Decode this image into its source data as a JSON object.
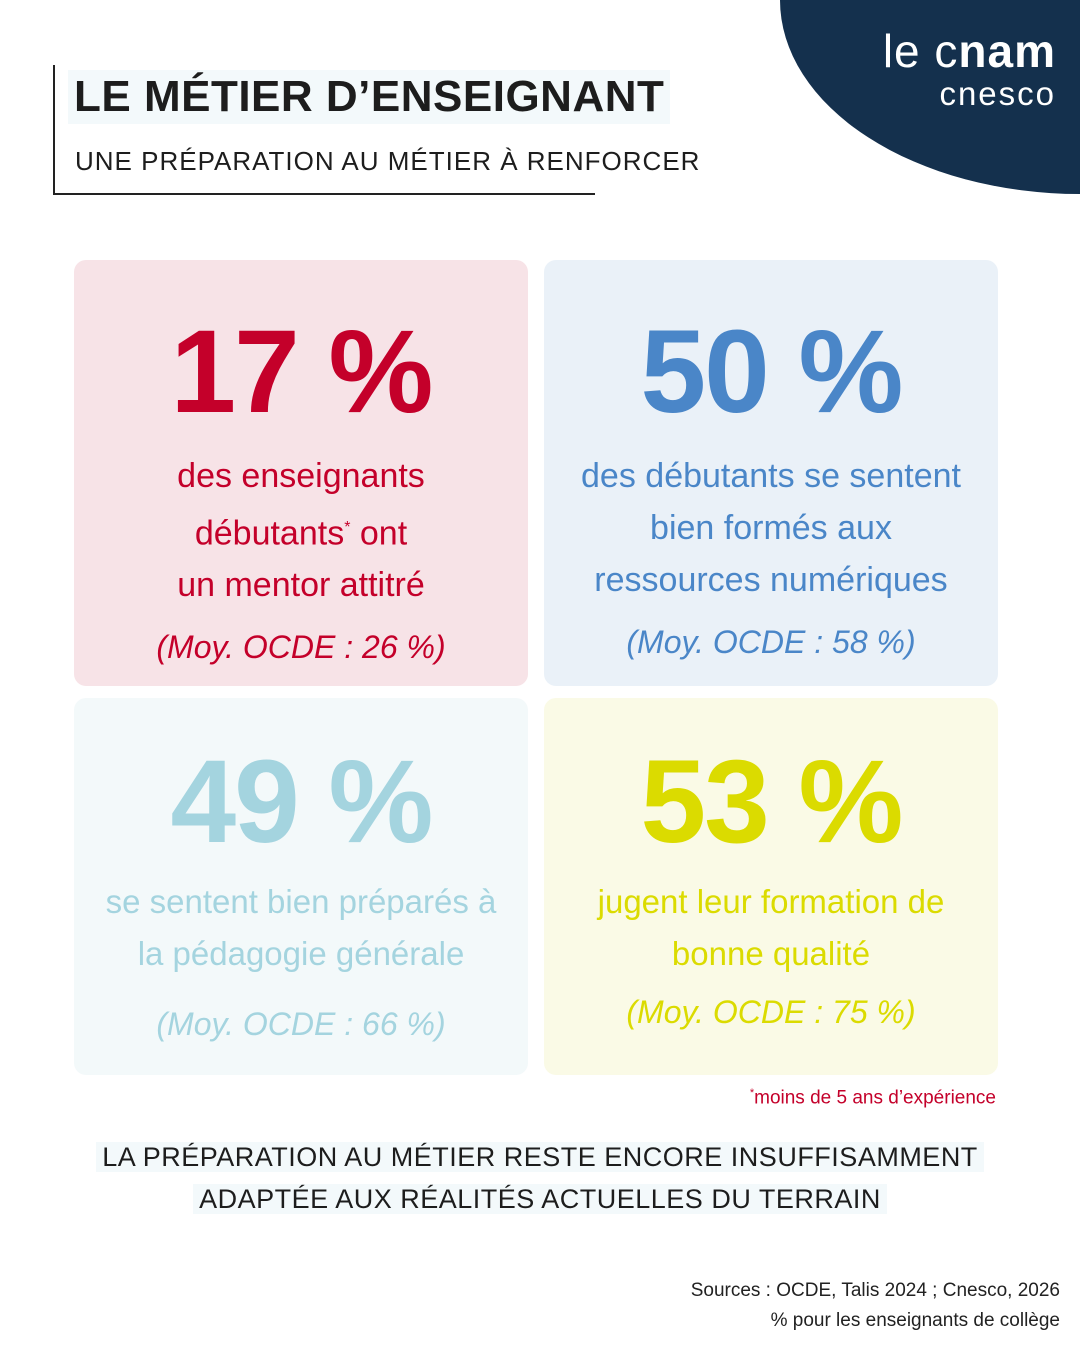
{
  "header": {
    "title": "LE MÉTIER D’ENSEIGNANT",
    "subtitle": "UNE PRÉPARATION AU MÉTIER À RENFORCER"
  },
  "logo": {
    "line1_light": "le c",
    "line1_bold": "nam",
    "line2": "cnesco"
  },
  "cards": [
    {
      "value": "17 %",
      "lines": [
        "des enseignants",
        "débutants",
        "ont",
        "un mentor attitré"
      ],
      "note_marker": "*",
      "avg": "(Moy. OCDE : 26 %)",
      "color": "#c4002a"
    },
    {
      "value": "50 %",
      "lines": [
        "des débutants se sentent",
        "bien formés aux",
        "ressources numériques"
      ],
      "avg": "(Moy. OCDE : 58 %)",
      "color": "#4a86c8"
    },
    {
      "value": "49 %",
      "lines": [
        "se sentent bien préparés à",
        "la pédagogie générale"
      ],
      "avg": "(Moy. OCDE : 66 %)",
      "color": "#a4d4df"
    },
    {
      "value": "53 %",
      "lines": [
        "jugent leur formation de",
        "bonne qualité"
      ],
      "avg": "(Moy. OCDE : 75 %)",
      "color": "#dbdb00"
    }
  ],
  "footnote": {
    "marker": "*",
    "text": "moins de 5 ans d’expérience"
  },
  "conclusion": [
    "LA PRÉPARATION AU MÉTIER RESTE ENCORE INSUFFISAMMENT",
    "ADAPTÉE AUX RÉALITÉS ACTUELLES DU TERRAIN"
  ],
  "sources": [
    "Sources : OCDE, Talis 2024 ; Cnesco, 2026",
    "% pour les enseignants de collège"
  ]
}
